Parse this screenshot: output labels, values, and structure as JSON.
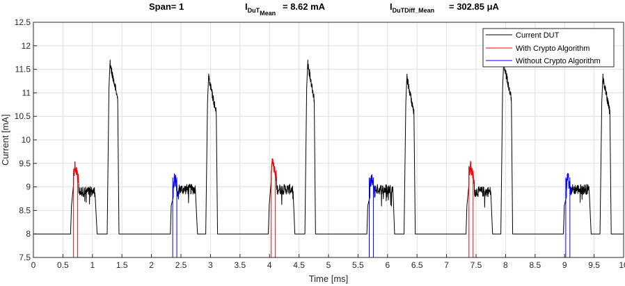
{
  "chart_data": {
    "type": "line",
    "title_parts": {
      "span": "Span= 1",
      "dut_main": "I",
      "dut_sub": "DuT",
      "dut_subsub": "Mean",
      "dut_value": "= 8.62 mA",
      "diff_main": "I",
      "diff_sub": "DuTDiff_Mean",
      "diff_value": "= 302.85 μA"
    },
    "xlabel": "Time [ms]",
    "ylabel": "Current [mA]",
    "xlim": [
      0,
      10
    ],
    "ylim": [
      7.5,
      12.5
    ],
    "xticks": [
      "0",
      "0.5",
      "1",
      "1.5",
      "2",
      "2.5",
      "3",
      "3.5",
      "4",
      "4.5",
      "5",
      "5.5",
      "6",
      "6.5",
      "7",
      "7.5",
      "8",
      "8.5",
      "9",
      "9.5",
      "10"
    ],
    "yticks": [
      "7.5",
      "8",
      "8.5",
      "9",
      "9.5",
      "10",
      "10.5",
      "11",
      "11.5",
      "12",
      "12.5"
    ],
    "grid": true,
    "legend_position": "top-right",
    "series": [
      {
        "name": "Current DUT",
        "color": "#000000",
        "baseline": 8.0,
        "small_pulses": [
          {
            "start": 0.63,
            "peak": 9.6,
            "plateau": 8.9,
            "end": 1.08,
            "type": "crypto"
          },
          {
            "start": 2.32,
            "peak": 9.33,
            "plateau": 8.95,
            "end": 2.78,
            "type": "nocrypto"
          },
          {
            "start": 3.98,
            "peak": 9.7,
            "plateau": 8.95,
            "end": 4.43,
            "type": "crypto"
          },
          {
            "start": 5.65,
            "peak": 9.33,
            "plateau": 8.95,
            "end": 6.12,
            "type": "nocrypto"
          },
          {
            "start": 7.33,
            "peak": 9.6,
            "plateau": 8.9,
            "end": 7.78,
            "type": "crypto"
          },
          {
            "start": 8.98,
            "peak": 9.33,
            "plateau": 8.95,
            "end": 9.45,
            "type": "nocrypto"
          }
        ],
        "large_pulses": [
          {
            "start": 1.25,
            "peak": 11.7,
            "end": 1.45
          },
          {
            "start": 2.92,
            "peak": 11.4,
            "end": 3.12
          },
          {
            "start": 4.6,
            "peak": 11.7,
            "end": 4.78
          },
          {
            "start": 6.28,
            "peak": 11.4,
            "end": 6.47
          },
          {
            "start": 7.92,
            "peak": 11.7,
            "end": 8.12
          },
          {
            "start": 9.6,
            "peak": 11.4,
            "end": 9.79
          }
        ]
      },
      {
        "name": "With Crypto Algorithm",
        "color": "#ff0000",
        "marker_pairs": [
          [
            0.68,
            0.75
          ],
          [
            4.03,
            4.1
          ],
          [
            7.38,
            7.45
          ]
        ]
      },
      {
        "name": "Without Crypto Algorithm",
        "color": "#0000ff",
        "marker_pairs": [
          [
            2.36,
            2.43
          ],
          [
            5.69,
            5.76
          ],
          [
            9.02,
            9.09
          ]
        ]
      }
    ]
  }
}
